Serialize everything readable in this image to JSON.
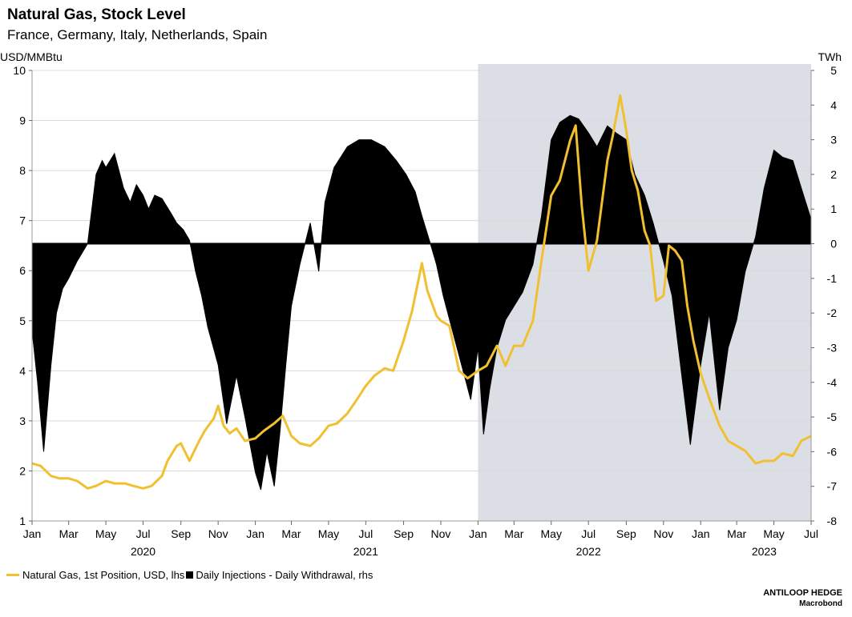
{
  "header": {
    "title": "Natural Gas, Stock Level",
    "subtitle": "France, Germany, Italy, Netherlands, Spain"
  },
  "footer": {
    "brand": "ANTILOOP HEDGE",
    "source": "Macrobond"
  },
  "colors": {
    "gas_line": "#F0C030",
    "injections": "#000000",
    "shade": "#DCDEE6",
    "grid": "#D9D9D9"
  },
  "chart_data": {
    "type": "line",
    "xrange": [
      "2020-01-01",
      "2023-07-01"
    ],
    "x_tick_labels": [
      "Jan",
      "Mar",
      "May",
      "Jul",
      "Sep",
      "Nov",
      "Jan",
      "Mar",
      "May",
      "Jul",
      "Sep",
      "Nov",
      "Jan",
      "Mar",
      "May",
      "Jul",
      "Sep",
      "Nov",
      "Jan",
      "Mar",
      "May",
      "Jul"
    ],
    "x_tick_dates": [
      "2020-01-01",
      "2020-03-01",
      "2020-05-01",
      "2020-07-01",
      "2020-09-01",
      "2020-11-01",
      "2021-01-01",
      "2021-03-01",
      "2021-05-01",
      "2021-07-01",
      "2021-09-01",
      "2021-11-01",
      "2022-01-01",
      "2022-03-01",
      "2022-05-01",
      "2022-07-01",
      "2022-09-01",
      "2022-11-01",
      "2023-01-01",
      "2023-03-01",
      "2023-05-01",
      "2023-07-01"
    ],
    "year_labels": [
      {
        "label": "2020",
        "date": "2020-07-01"
      },
      {
        "label": "2021",
        "date": "2021-07-01"
      },
      {
        "label": "2022",
        "date": "2022-07-01"
      },
      {
        "label": "2023",
        "date": "2023-04-15"
      }
    ],
    "y_left": {
      "label": "USD/MMBtu",
      "min": 1,
      "max": 10,
      "ticks": [
        1,
        2,
        3,
        4,
        5,
        6,
        7,
        8,
        9,
        10
      ]
    },
    "y_right": {
      "label": "TWh",
      "min": -8,
      "max": 5,
      "ticks": [
        -8,
        -7,
        -6,
        -5,
        -4,
        -3,
        -2,
        -1,
        0,
        1,
        2,
        3,
        4,
        5
      ]
    },
    "shaded_region": {
      "start": "2022-01-01",
      "end": "2023-07-01"
    },
    "grid": true,
    "legend_position": "bottom-left",
    "series": [
      {
        "name": "Natural Gas, 1st Position, USD, lhs",
        "axis": "left",
        "type": "line",
        "points": [
          [
            "2020-01-01",
            2.15
          ],
          [
            "2020-01-15",
            2.1
          ],
          [
            "2020-02-01",
            1.9
          ],
          [
            "2020-02-15",
            1.85
          ],
          [
            "2020-03-01",
            1.85
          ],
          [
            "2020-03-15",
            1.8
          ],
          [
            "2020-04-01",
            1.65
          ],
          [
            "2020-04-15",
            1.7
          ],
          [
            "2020-05-01",
            1.8
          ],
          [
            "2020-05-15",
            1.75
          ],
          [
            "2020-06-01",
            1.75
          ],
          [
            "2020-06-15",
            1.7
          ],
          [
            "2020-07-01",
            1.65
          ],
          [
            "2020-07-15",
            1.7
          ],
          [
            "2020-08-01",
            1.9
          ],
          [
            "2020-08-10",
            2.2
          ],
          [
            "2020-08-25",
            2.5
          ],
          [
            "2020-09-01",
            2.55
          ],
          [
            "2020-09-15",
            2.2
          ],
          [
            "2020-10-01",
            2.6
          ],
          [
            "2020-10-10",
            2.8
          ],
          [
            "2020-10-25",
            3.05
          ],
          [
            "2020-11-01",
            3.3
          ],
          [
            "2020-11-10",
            2.9
          ],
          [
            "2020-11-20",
            2.75
          ],
          [
            "2020-12-01",
            2.85
          ],
          [
            "2020-12-15",
            2.6
          ],
          [
            "2021-01-01",
            2.65
          ],
          [
            "2021-01-15",
            2.8
          ],
          [
            "2021-02-01",
            2.95
          ],
          [
            "2021-02-15",
            3.1
          ],
          [
            "2021-03-01",
            2.7
          ],
          [
            "2021-03-15",
            2.55
          ],
          [
            "2021-04-01",
            2.5
          ],
          [
            "2021-04-15",
            2.65
          ],
          [
            "2021-05-01",
            2.9
          ],
          [
            "2021-05-15",
            2.95
          ],
          [
            "2021-06-01",
            3.15
          ],
          [
            "2021-06-15",
            3.4
          ],
          [
            "2021-07-01",
            3.7
          ],
          [
            "2021-07-15",
            3.9
          ],
          [
            "2021-08-01",
            4.05
          ],
          [
            "2021-08-15",
            4.0
          ],
          [
            "2021-09-01",
            4.6
          ],
          [
            "2021-09-15",
            5.2
          ],
          [
            "2021-10-01",
            6.15
          ],
          [
            "2021-10-10",
            5.6
          ],
          [
            "2021-10-25",
            5.1
          ],
          [
            "2021-11-01",
            5.0
          ],
          [
            "2021-11-15",
            4.9
          ],
          [
            "2021-12-01",
            4.0
          ],
          [
            "2021-12-15",
            3.85
          ],
          [
            "2022-01-01",
            4.0
          ],
          [
            "2022-01-15",
            4.1
          ],
          [
            "2022-02-01",
            4.5
          ],
          [
            "2022-02-15",
            4.1
          ],
          [
            "2022-03-01",
            4.5
          ],
          [
            "2022-03-15",
            4.5
          ],
          [
            "2022-04-01",
            5.0
          ],
          [
            "2022-04-15",
            6.2
          ],
          [
            "2022-05-01",
            7.5
          ],
          [
            "2022-05-15",
            7.8
          ],
          [
            "2022-06-01",
            8.6
          ],
          [
            "2022-06-10",
            8.9
          ],
          [
            "2022-06-20",
            7.3
          ],
          [
            "2022-07-01",
            6.0
          ],
          [
            "2022-07-15",
            6.6
          ],
          [
            "2022-08-01",
            8.2
          ],
          [
            "2022-08-10",
            8.7
          ],
          [
            "2022-08-22",
            9.5
          ],
          [
            "2022-09-01",
            8.8
          ],
          [
            "2022-09-10",
            8.0
          ],
          [
            "2022-09-20",
            7.6
          ],
          [
            "2022-10-01",
            6.8
          ],
          [
            "2022-10-10",
            6.5
          ],
          [
            "2022-10-20",
            5.4
          ],
          [
            "2022-11-01",
            5.5
          ],
          [
            "2022-11-10",
            6.5
          ],
          [
            "2022-11-20",
            6.4
          ],
          [
            "2022-12-01",
            6.2
          ],
          [
            "2022-12-10",
            5.3
          ],
          [
            "2022-12-20",
            4.6
          ],
          [
            "2023-01-01",
            3.95
          ],
          [
            "2023-01-15",
            3.45
          ],
          [
            "2023-02-01",
            2.9
          ],
          [
            "2023-02-15",
            2.6
          ],
          [
            "2023-03-01",
            2.5
          ],
          [
            "2023-03-15",
            2.4
          ],
          [
            "2023-04-01",
            2.15
          ],
          [
            "2023-04-15",
            2.2
          ],
          [
            "2023-05-01",
            2.2
          ],
          [
            "2023-05-15",
            2.35
          ],
          [
            "2023-06-01",
            2.3
          ],
          [
            "2023-06-15",
            2.6
          ],
          [
            "2023-07-01",
            2.7
          ]
        ]
      },
      {
        "name": "Daily Injections - Daily Withdrawal, rhs",
        "axis": "right",
        "type": "area",
        "points": [
          [
            "2020-01-01",
            -2.5
          ],
          [
            "2020-01-10",
            -4.0
          ],
          [
            "2020-01-20",
            -6.0
          ],
          [
            "2020-02-01",
            -3.5
          ],
          [
            "2020-02-10",
            -2.0
          ],
          [
            "2020-02-20",
            -1.3
          ],
          [
            "2020-03-01",
            -1.0
          ],
          [
            "2020-03-15",
            -0.5
          ],
          [
            "2020-04-01",
            0.0
          ],
          [
            "2020-04-15",
            2.0
          ],
          [
            "2020-04-25",
            2.4
          ],
          [
            "2020-05-01",
            2.2
          ],
          [
            "2020-05-15",
            2.6
          ],
          [
            "2020-05-30",
            1.6
          ],
          [
            "2020-06-10",
            1.2
          ],
          [
            "2020-06-20",
            1.7
          ],
          [
            "2020-07-01",
            1.4
          ],
          [
            "2020-07-10",
            1.0
          ],
          [
            "2020-07-20",
            1.4
          ],
          [
            "2020-08-01",
            1.3
          ],
          [
            "2020-08-15",
            0.9
          ],
          [
            "2020-08-25",
            0.6
          ],
          [
            "2020-09-05",
            0.4
          ],
          [
            "2020-09-15",
            0.1
          ],
          [
            "2020-09-25",
            -0.8
          ],
          [
            "2020-10-05",
            -1.5
          ],
          [
            "2020-10-15",
            -2.4
          ],
          [
            "2020-11-01",
            -3.5
          ],
          [
            "2020-11-15",
            -5.2
          ],
          [
            "2020-12-01",
            -3.8
          ],
          [
            "2020-12-15",
            -5.0
          ],
          [
            "2021-01-01",
            -6.6
          ],
          [
            "2021-01-10",
            -7.1
          ],
          [
            "2021-01-20",
            -6.0
          ],
          [
            "2021-02-01",
            -7.0
          ],
          [
            "2021-02-10",
            -5.5
          ],
          [
            "2021-02-20",
            -3.5
          ],
          [
            "2021-03-01",
            -1.8
          ],
          [
            "2021-03-15",
            -0.6
          ],
          [
            "2021-04-01",
            0.6
          ],
          [
            "2021-04-15",
            -0.8
          ],
          [
            "2021-04-25",
            1.2
          ],
          [
            "2021-05-10",
            2.2
          ],
          [
            "2021-06-01",
            2.8
          ],
          [
            "2021-06-20",
            3.0
          ],
          [
            "2021-07-10",
            3.0
          ],
          [
            "2021-08-01",
            2.8
          ],
          [
            "2021-08-20",
            2.4
          ],
          [
            "2021-09-05",
            2.0
          ],
          [
            "2021-09-20",
            1.5
          ],
          [
            "2021-10-01",
            0.8
          ],
          [
            "2021-10-15",
            0.0
          ],
          [
            "2021-10-25",
            -0.6
          ],
          [
            "2021-11-05",
            -1.5
          ],
          [
            "2021-11-20",
            -2.5
          ],
          [
            "2021-12-05",
            -3.5
          ],
          [
            "2021-12-20",
            -4.5
          ],
          [
            "2022-01-01",
            -3.0
          ],
          [
            "2022-01-10",
            -5.5
          ],
          [
            "2022-01-20",
            -4.2
          ],
          [
            "2022-02-01",
            -3.0
          ],
          [
            "2022-02-15",
            -2.2
          ],
          [
            "2022-03-01",
            -1.8
          ],
          [
            "2022-03-15",
            -1.4
          ],
          [
            "2022-04-01",
            -0.6
          ],
          [
            "2022-04-15",
            0.8
          ],
          [
            "2022-05-01",
            3.0
          ],
          [
            "2022-05-15",
            3.5
          ],
          [
            "2022-06-01",
            3.7
          ],
          [
            "2022-06-15",
            3.6
          ],
          [
            "2022-07-01",
            3.2
          ],
          [
            "2022-07-15",
            2.8
          ],
          [
            "2022-08-01",
            3.4
          ],
          [
            "2022-08-15",
            3.2
          ],
          [
            "2022-09-01",
            3.0
          ],
          [
            "2022-09-15",
            2.0
          ],
          [
            "2022-10-01",
            1.4
          ],
          [
            "2022-10-15",
            0.6
          ],
          [
            "2022-11-01",
            -0.5
          ],
          [
            "2022-11-15",
            -1.5
          ],
          [
            "2022-12-01",
            -3.8
          ],
          [
            "2022-12-15",
            -5.8
          ],
          [
            "2023-01-01",
            -3.5
          ],
          [
            "2023-01-15",
            -2.0
          ],
          [
            "2023-02-01",
            -4.8
          ],
          [
            "2023-02-15",
            -3.0
          ],
          [
            "2023-03-01",
            -2.2
          ],
          [
            "2023-03-15",
            -0.8
          ],
          [
            "2023-04-01",
            0.2
          ],
          [
            "2023-04-15",
            1.6
          ],
          [
            "2023-05-01",
            2.7
          ],
          [
            "2023-05-15",
            2.5
          ],
          [
            "2023-06-01",
            2.4
          ],
          [
            "2023-06-15",
            1.6
          ],
          [
            "2023-07-01",
            0.7
          ]
        ]
      }
    ]
  }
}
